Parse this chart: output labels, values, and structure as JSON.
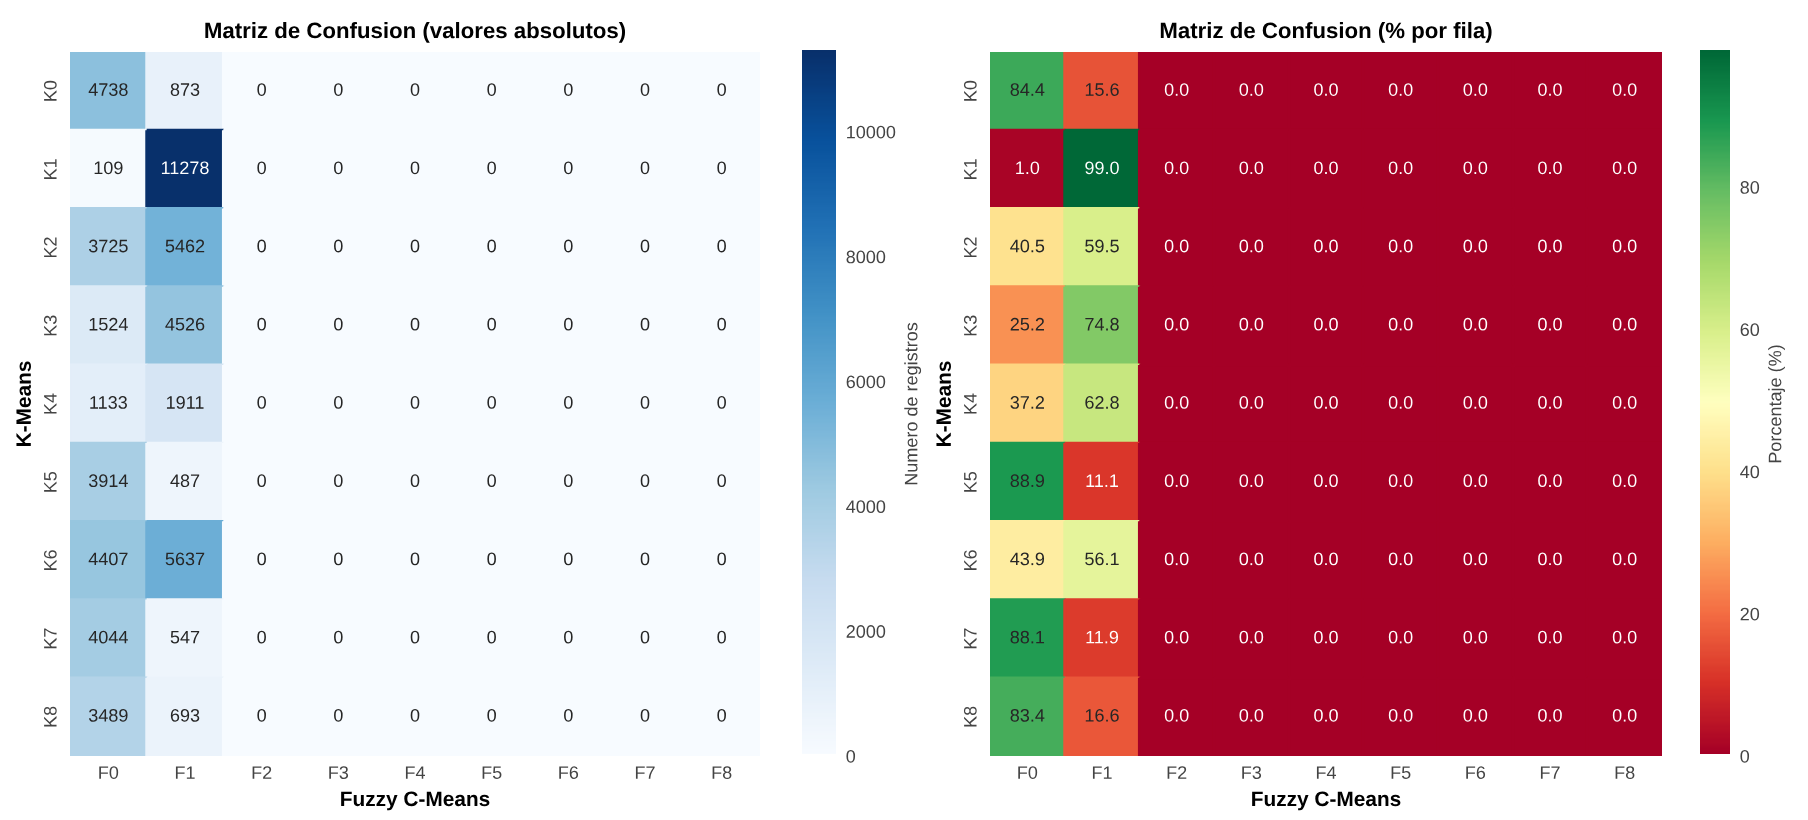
{
  "chart_data": [
    {
      "type": "heatmap",
      "title": "Matriz de Confusion (valores absolutos)",
      "xlabel": "Fuzzy C-Means",
      "ylabel": "K-Means",
      "clabel": "Numero de registros",
      "categories": [
        "F0",
        "F1",
        "F2",
        "F3",
        "F4",
        "F5",
        "F6",
        "F7",
        "F8"
      ],
      "y_categories": [
        "K0",
        "K1",
        "K2",
        "K3",
        "K4",
        "K5",
        "K6",
        "K7",
        "K8"
      ],
      "cells": [
        [
          4738,
          873,
          0,
          0,
          0,
          0,
          0,
          0,
          0
        ],
        [
          109,
          11278,
          0,
          0,
          0,
          0,
          0,
          0,
          0
        ],
        [
          3725,
          5462,
          0,
          0,
          0,
          0,
          0,
          0,
          0
        ],
        [
          1524,
          4526,
          0,
          0,
          0,
          0,
          0,
          0,
          0
        ],
        [
          1133,
          1911,
          0,
          0,
          0,
          0,
          0,
          0,
          0
        ],
        [
          3914,
          487,
          0,
          0,
          0,
          0,
          0,
          0,
          0
        ],
        [
          4407,
          5637,
          0,
          0,
          0,
          0,
          0,
          0,
          0
        ],
        [
          4044,
          547,
          0,
          0,
          0,
          0,
          0,
          0,
          0
        ],
        [
          3489,
          693,
          0,
          0,
          0,
          0,
          0,
          0,
          0
        ]
      ],
      "data_labels": true,
      "clim": [
        0,
        11278
      ],
      "cticks": [
        0,
        2000,
        4000,
        6000,
        8000,
        10000
      ]
    },
    {
      "type": "heatmap",
      "title": "Matriz de Confusion (% por fila)",
      "xlabel": "Fuzzy C-Means",
      "ylabel": "K-Means",
      "clabel": "Porcentaje (%)",
      "categories": [
        "F0",
        "F1",
        "F2",
        "F3",
        "F4",
        "F5",
        "F6",
        "F7",
        "F8"
      ],
      "y_categories": [
        "K0",
        "K1",
        "K2",
        "K3",
        "K4",
        "K5",
        "K6",
        "K7",
        "K8"
      ],
      "cells": [
        [
          84.4,
          15.6,
          0,
          0,
          0,
          0,
          0,
          0,
          0
        ],
        [
          1.0,
          99.0,
          0,
          0,
          0,
          0,
          0,
          0,
          0
        ],
        [
          40.5,
          59.5,
          0,
          0,
          0,
          0,
          0,
          0,
          0
        ],
        [
          25.2,
          74.8,
          0,
          0,
          0,
          0,
          0,
          0,
          0
        ],
        [
          37.2,
          62.8,
          0,
          0,
          0,
          0,
          0,
          0,
          0
        ],
        [
          88.9,
          11.1,
          0,
          0,
          0,
          0,
          0,
          0,
          0
        ],
        [
          43.9,
          56.1,
          0,
          0,
          0,
          0,
          0,
          0,
          0
        ],
        [
          88.1,
          11.9,
          0,
          0,
          0,
          0,
          0,
          0,
          0
        ],
        [
          83.4,
          16.6,
          0,
          0,
          0,
          0,
          0,
          0,
          0
        ]
      ],
      "cell_labels": [
        [
          "84.4",
          "15.6",
          "0.0",
          "0.0",
          "0.0",
          "0.0",
          "0.0",
          "0.0",
          "0.0"
        ],
        [
          "1.0",
          "99.0",
          "0.0",
          "0.0",
          "0.0",
          "0.0",
          "0.0",
          "0.0",
          "0.0"
        ],
        [
          "40.5",
          "59.5",
          "0.0",
          "0.0",
          "0.0",
          "0.0",
          "0.0",
          "0.0",
          "0.0"
        ],
        [
          "25.2",
          "74.8",
          "0.0",
          "0.0",
          "0.0",
          "0.0",
          "0.0",
          "0.0",
          "0.0"
        ],
        [
          "37.2",
          "62.8",
          "0.0",
          "0.0",
          "0.0",
          "0.0",
          "0.0",
          "0.0",
          "0.0"
        ],
        [
          "88.9",
          "11.1",
          "0.0",
          "0.0",
          "0.0",
          "0.0",
          "0.0",
          "0.0",
          "0.0"
        ],
        [
          "43.9",
          "56.1",
          "0.0",
          "0.0",
          "0.0",
          "0.0",
          "0.0",
          "0.0",
          "0.0"
        ],
        [
          "88.1",
          "11.9",
          "0.0",
          "0.0",
          "0.0",
          "0.0",
          "0.0",
          "0.0",
          "0.0"
        ],
        [
          "83.4",
          "16.6",
          "0.0",
          "0.0",
          "0.0",
          "0.0",
          "0.0",
          "0.0",
          "0.0"
        ]
      ],
      "clim": [
        0,
        99.0
      ],
      "cticks": [
        0,
        20,
        40,
        60,
        80
      ]
    }
  ]
}
